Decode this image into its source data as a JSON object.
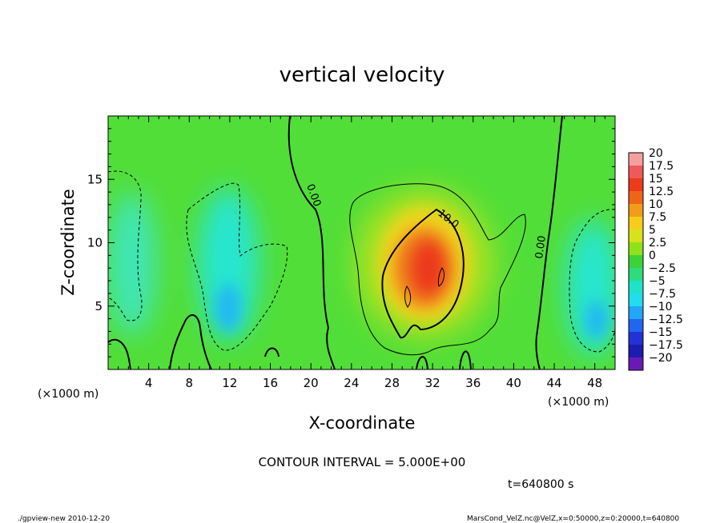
{
  "chart_data": {
    "type": "heatmap",
    "title": "vertical velocity",
    "xlabel": "X-coordinate",
    "ylabel": "Z-coordinate",
    "x_unit_label": "(×1000 m)",
    "y_unit_label": "(×1000 m)",
    "xlim": [
      0,
      50
    ],
    "ylim": [
      0,
      20
    ],
    "x_ticks": [
      4,
      8,
      12,
      16,
      20,
      24,
      28,
      32,
      36,
      40,
      44,
      48
    ],
    "y_ticks": [
      5,
      10,
      15
    ],
    "colorbar_levels": [
      "20",
      "17.5",
      "15",
      "12.5",
      "10",
      "7.5",
      "5",
      "2.5",
      "0",
      "−2.5",
      "−5",
      "−7.5",
      "−10",
      "−12.5",
      "−15",
      "−17.5",
      "−20"
    ],
    "colorbar_colors": [
      "#f5a0a0",
      "#ee5a5a",
      "#ec3a1a",
      "#f0641a",
      "#f39c1a",
      "#f7cc1a",
      "#d6e21a",
      "#8fe21a",
      "#3ed23a",
      "#2ddb80",
      "#1fe3c8",
      "#22dcef",
      "#22a6f5",
      "#2266f0",
      "#2233d6",
      "#1c1cae",
      "#6a1ab4"
    ],
    "contour_labels": [
      "0.00",
      "10.0",
      "0.00"
    ],
    "contour_interval": "CONTOUR INTERVAL = 5.000E+00",
    "grid": false
  },
  "time_label": "t=640800 s",
  "footer_left": "./gpview-new  2010-12-20",
  "footer_right": "MarsCond_VelZ.nc@VelZ,x=0:50000,z=0:20000,t=640800"
}
